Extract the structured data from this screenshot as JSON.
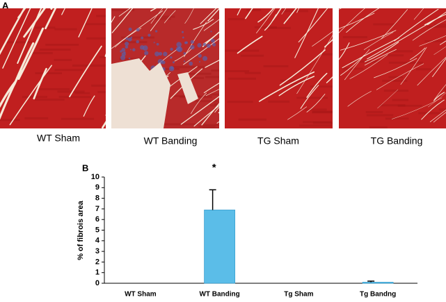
{
  "panel_a": {
    "label": "A",
    "captions": [
      "WT Sham",
      "WT Banding",
      "TG Sham",
      "TG Banding"
    ]
  },
  "panel_b": {
    "label": "B"
  },
  "chart_data": {
    "type": "bar",
    "ylabel": "% of fibrois area",
    "annotation": "*",
    "categories": [
      "WT Sham",
      "WT Banding",
      "Tg Sham",
      "Tg Bandng"
    ],
    "values": [
      0,
      6.9,
      0,
      0.1
    ],
    "errors": [
      0,
      1.9,
      0,
      0.1
    ],
    "color": "#5bbde8",
    "ylim": [
      0,
      10
    ],
    "yticks": [
      0,
      1,
      2,
      3,
      4,
      5,
      6,
      7,
      8,
      9,
      10
    ]
  }
}
